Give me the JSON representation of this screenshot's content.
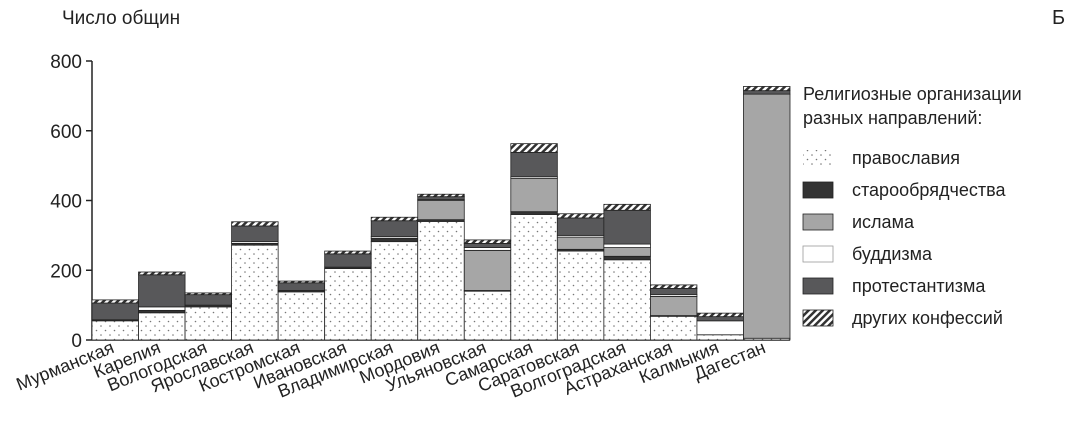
{
  "chart_data": {
    "type": "bar",
    "stacked": true,
    "title": "",
    "corner_label": "Б",
    "ylabel": "Число общин",
    "xlabel": "",
    "ylim": [
      0,
      800
    ],
    "yticks": [
      0,
      200,
      400,
      600,
      800
    ],
    "grid": false,
    "legend_position": "right",
    "legend_title": [
      "Религиозные организации",
      "разных направлений:"
    ],
    "categories": [
      "Мурманская",
      "Карелия",
      "Вологодская",
      "Ярославская",
      "Костромская",
      "Ивановская",
      "Владимирская",
      "Мордовия",
      "Ульяновская",
      "Самарская",
      "Саратовская",
      "Волгоградская",
      "Астраханская",
      "Калмыкия",
      "Дагестан"
    ],
    "series": [
      {
        "name": "православия",
        "color": "#ffffff",
        "pattern": "dots",
        "values": [
          55,
          78,
          95,
          272,
          138,
          205,
          282,
          340,
          140,
          360,
          255,
          230,
          68,
          15,
          5
        ]
      },
      {
        "name": "старообрядчества",
        "color": "#333333",
        "pattern": "solid",
        "values": [
          3,
          7,
          5,
          5,
          4,
          4,
          10,
          5,
          2,
          8,
          5,
          10,
          2,
          0,
          0
        ]
      },
      {
        "name": "ислама",
        "color": "#a6a6a6",
        "pattern": "solid",
        "values": [
          0,
          0,
          0,
          0,
          0,
          0,
          0,
          55,
          115,
          95,
          35,
          25,
          55,
          0,
          700
        ]
      },
      {
        "name": "буддизма",
        "color": "#ffffff",
        "pattern": "solid",
        "values": [
          0,
          10,
          0,
          5,
          0,
          0,
          5,
          3,
          8,
          5,
          5,
          10,
          5,
          40,
          0
        ]
      },
      {
        "name": "протестантизма",
        "color": "#58585a",
        "pattern": "solid",
        "values": [
          48,
          92,
          30,
          45,
          22,
          38,
          45,
          8,
          12,
          70,
          50,
          97,
          18,
          12,
          10
        ]
      },
      {
        "name": "других конфессий",
        "color": "#777777",
        "pattern": "hatch",
        "values": [
          9,
          8,
          5,
          12,
          5,
          8,
          10,
          7,
          10,
          25,
          12,
          17,
          10,
          10,
          12
        ]
      }
    ]
  }
}
